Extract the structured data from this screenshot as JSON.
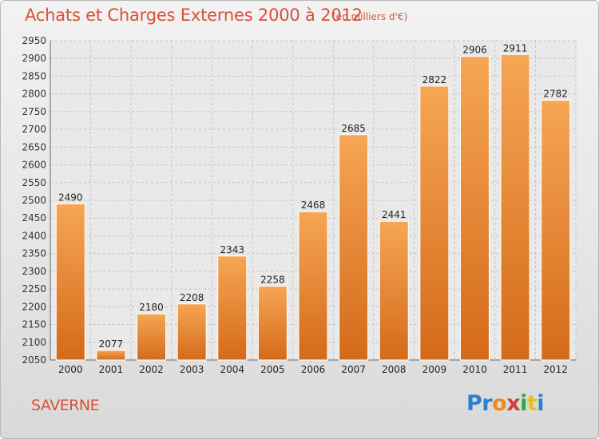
{
  "chart_data": {
    "type": "bar",
    "title": "Achats et Charges Externes 2000 à 2012",
    "subtitle": "(en milliers d'€)",
    "categories": [
      "2000",
      "2001",
      "2002",
      "2003",
      "2004",
      "2005",
      "2006",
      "2007",
      "2008",
      "2009",
      "2010",
      "2011",
      "2012"
    ],
    "values": [
      2490,
      2077,
      2180,
      2208,
      2343,
      2258,
      2468,
      2685,
      2441,
      2822,
      2906,
      2911,
      2782
    ],
    "ylim": [
      2050,
      2950
    ],
    "yticks": [
      2050,
      2100,
      2150,
      2200,
      2250,
      2300,
      2350,
      2400,
      2450,
      2500,
      2550,
      2600,
      2650,
      2700,
      2750,
      2800,
      2850,
      2900,
      2950
    ],
    "grid": true,
    "xlabel": "",
    "ylabel": "",
    "bar_color_top": "#f6a654",
    "bar_color_bottom": "#d46a1a"
  },
  "footer": {
    "city": "SAVERNE",
    "logo_letters": [
      {
        "char": "P",
        "color": "#2f7fd0"
      },
      {
        "char": "r",
        "color": "#2f7fd0"
      },
      {
        "char": "o",
        "color": "#f08a1e"
      },
      {
        "char": "x",
        "color": "#d43c3c"
      },
      {
        "char": "i",
        "color": "#2aa84a"
      },
      {
        "char": "t",
        "color": "#e8c01a"
      },
      {
        "char": "i",
        "color": "#2f7fd0"
      }
    ]
  }
}
